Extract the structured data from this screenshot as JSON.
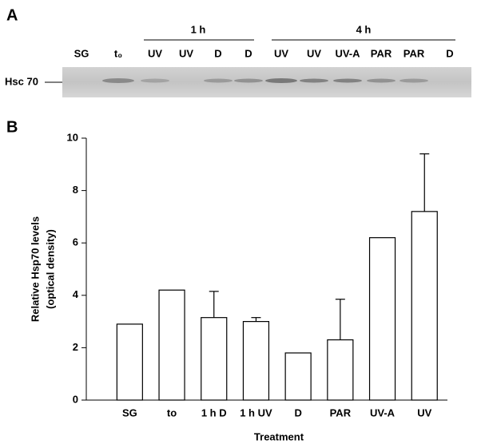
{
  "panel_labels": [
    "A",
    "B"
  ],
  "blot": {
    "row_label": "Hsc 70",
    "groups": [
      {
        "label": "1 h"
      },
      {
        "label": "4 h"
      }
    ],
    "lane_labels": [
      "SG",
      "t₀",
      "UV",
      "UV",
      "D",
      "D",
      "UV",
      "UV",
      "UV-A",
      "PAR",
      "PAR",
      "D"
    ]
  },
  "chart_data": {
    "type": "bar",
    "ylabel": [
      "Relative Hsp70 levels",
      "(optical density)"
    ],
    "xlabel": "Treatment",
    "categories": [
      "SG",
      "to",
      "1 h D",
      "1 h UV",
      "D",
      "PAR",
      "UV-A",
      "UV"
    ],
    "values": [
      2.9,
      4.2,
      3.15,
      3.0,
      1.8,
      2.3,
      6.2,
      7.2
    ],
    "errors": [
      null,
      null,
      1.0,
      0.15,
      null,
      1.55,
      null,
      2.2
    ],
    "color": "#ffffff",
    "ylim": [
      0,
      10
    ],
    "yticks": [
      0,
      2,
      4,
      6,
      8,
      10
    ],
    "grid": false
  }
}
